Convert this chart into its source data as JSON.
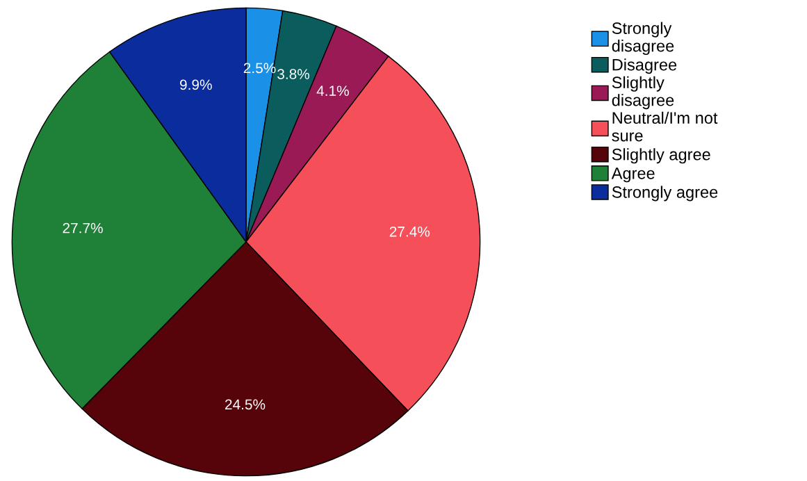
{
  "chart_data": {
    "type": "pie",
    "categories": [
      "Strongly disagree",
      "Disagree",
      "Slightly disagree",
      "Neutral/I'm not sure",
      "Slightly agree",
      "Agree",
      "Strongly agree"
    ],
    "values": [
      2.5,
      3.8,
      4.1,
      27.4,
      24.5,
      27.7,
      9.9
    ],
    "colors": [
      "#1a90e6",
      "#0b5c5c",
      "#9a1a55",
      "#f5505a",
      "#560409",
      "#1f8038",
      "#0a2c9c"
    ],
    "value_labels": [
      "2.5%",
      "3.8%",
      "4.1%",
      "27.4%",
      "24.5%",
      "27.7%",
      "9.9%"
    ],
    "legend": "right"
  }
}
